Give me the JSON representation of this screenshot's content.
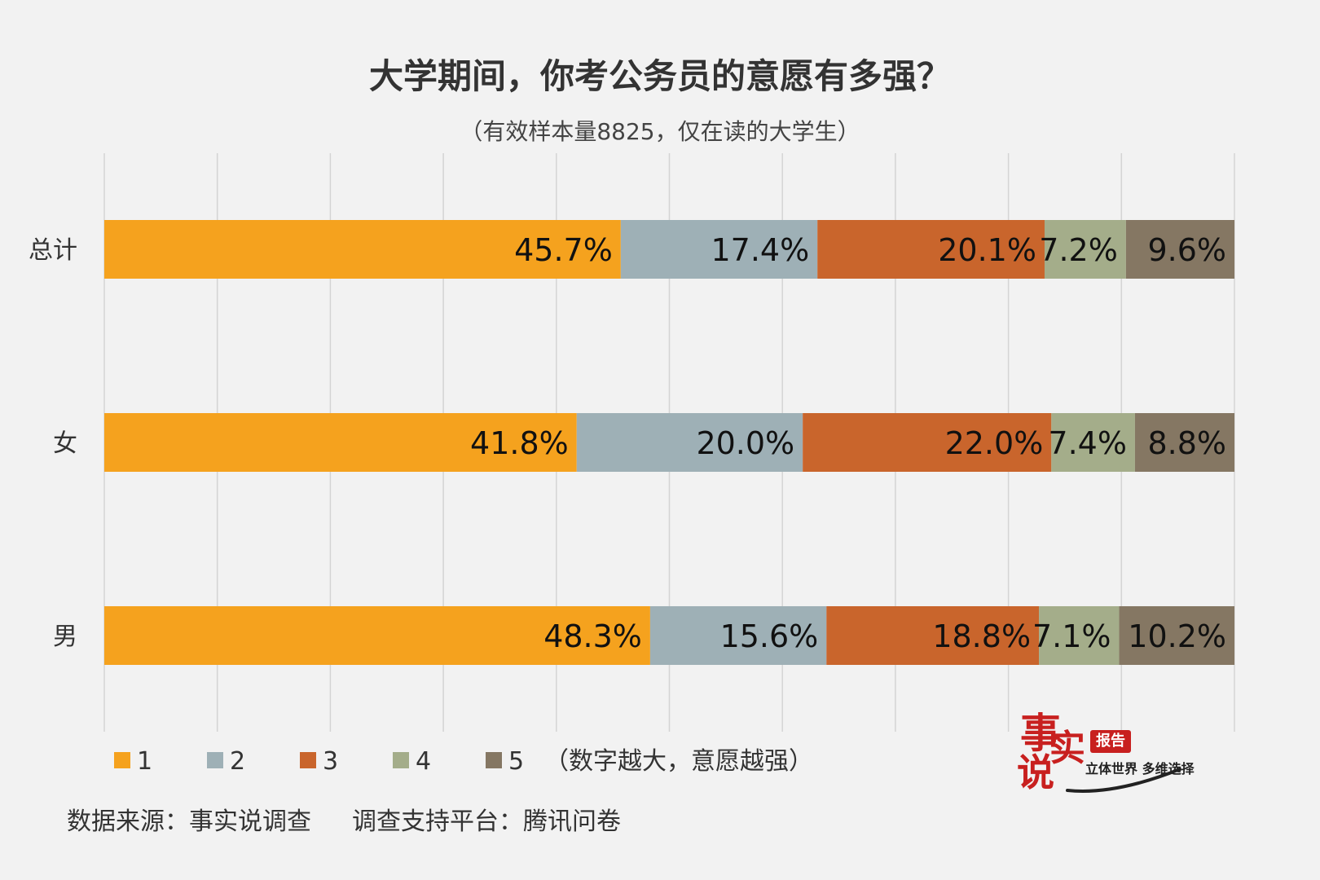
{
  "chart_data": {
    "type": "bar",
    "orientation": "horizontal",
    "stacked": true,
    "title": "大学期间，你考公务员的意愿有多强？",
    "subtitle": "（有效样本量8825，仅在读的大学生）",
    "categories": [
      "总计",
      "女",
      "男"
    ],
    "series": [
      {
        "name": "1",
        "color": "#f5a21e",
        "values": [
          45.7,
          41.8,
          48.3
        ]
      },
      {
        "name": "2",
        "color": "#9eb0b6",
        "values": [
          17.4,
          20.0,
          15.6
        ]
      },
      {
        "name": "3",
        "color": "#c9652c",
        "values": [
          20.1,
          22.0,
          18.8
        ]
      },
      {
        "name": "4",
        "color": "#a4ad8a",
        "values": [
          7.2,
          7.4,
          7.1
        ]
      },
      {
        "name": "5",
        "color": "#857763",
        "values": [
          9.6,
          8.8,
          10.2
        ]
      }
    ],
    "value_suffix": "%",
    "xlim": [
      0,
      100
    ],
    "grid": true,
    "legend_position": "bottom-left",
    "legend_note": "（数字越大，意愿越强）"
  },
  "footer": {
    "source": "数据来源：事实说调查",
    "platform": "调查支持平台：腾讯问卷"
  },
  "logo": {
    "char1": "事",
    "char2": "实",
    "char3": "说",
    "badge": "报告",
    "slogan": "立体世界 多维选择",
    "color": "#c8201f"
  }
}
